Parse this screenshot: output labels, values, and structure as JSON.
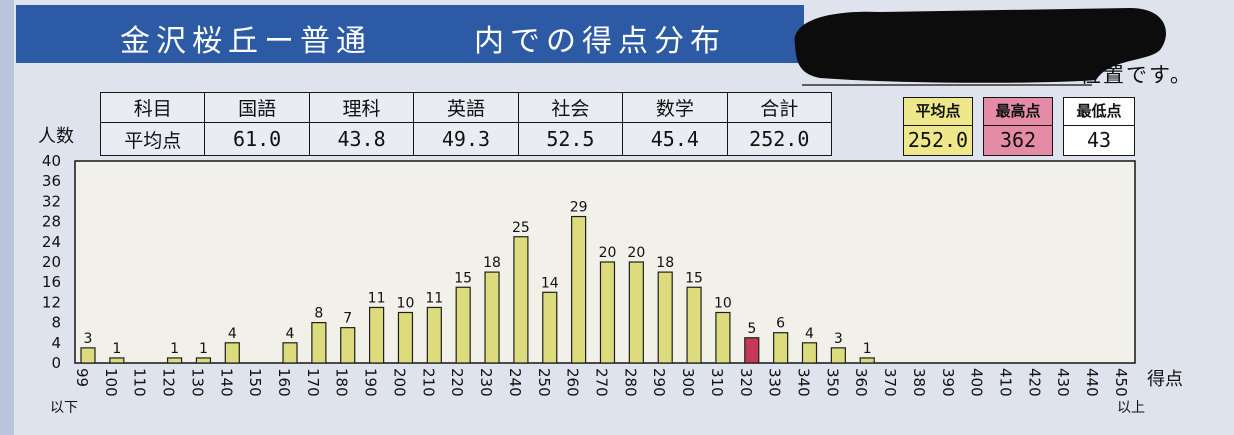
{
  "header": {
    "title_left": "金沢桜丘ー普通",
    "title_right": "内での得点分布",
    "note_text": "位置です。"
  },
  "colors": {
    "header_band": "#2c5aa5",
    "bar": "#dcdc7c",
    "highlight_bar": "#c43a56",
    "average_box": "#eee88a",
    "max_box": "#e48ba8",
    "min_box": "#ffffff",
    "plot_background": "#f1f1ea"
  },
  "subject_table": {
    "header_label": "科目",
    "row_label": "平均点",
    "subjects": [
      "国語",
      "理科",
      "英語",
      "社会",
      "数学",
      "合計"
    ],
    "averages": [
      "61.0",
      "43.8",
      "49.3",
      "52.5",
      "45.4",
      "252.0"
    ]
  },
  "stats": {
    "average": {
      "label": "平均点",
      "value": "252.0"
    },
    "max": {
      "label": "最高点",
      "value": "362"
    },
    "min": {
      "label": "最低点",
      "value": "43"
    }
  },
  "chart_data": {
    "type": "bar",
    "ylabel": "人数",
    "xlabel": "得点",
    "x_start_note": "以下",
    "x_end_note": "以上",
    "categories": [
      "99",
      "100",
      "110",
      "120",
      "130",
      "140",
      "150",
      "160",
      "170",
      "180",
      "190",
      "200",
      "210",
      "220",
      "230",
      "240",
      "250",
      "260",
      "270",
      "280",
      "290",
      "300",
      "310",
      "320",
      "330",
      "340",
      "350",
      "360",
      "370",
      "380",
      "390",
      "400",
      "410",
      "420",
      "430",
      "440",
      "450"
    ],
    "values": [
      3,
      1,
      0,
      1,
      1,
      4,
      0,
      4,
      8,
      7,
      11,
      10,
      11,
      15,
      18,
      25,
      14,
      29,
      20,
      20,
      18,
      15,
      10,
      5,
      6,
      4,
      3,
      1,
      0,
      0,
      0,
      0,
      0,
      0,
      0,
      0,
      0
    ],
    "ylim": [
      0,
      40
    ],
    "yticks": [
      0,
      4,
      8,
      12,
      16,
      20,
      24,
      28,
      32,
      36,
      40
    ],
    "highlight_category": "320",
    "grid": false
  }
}
